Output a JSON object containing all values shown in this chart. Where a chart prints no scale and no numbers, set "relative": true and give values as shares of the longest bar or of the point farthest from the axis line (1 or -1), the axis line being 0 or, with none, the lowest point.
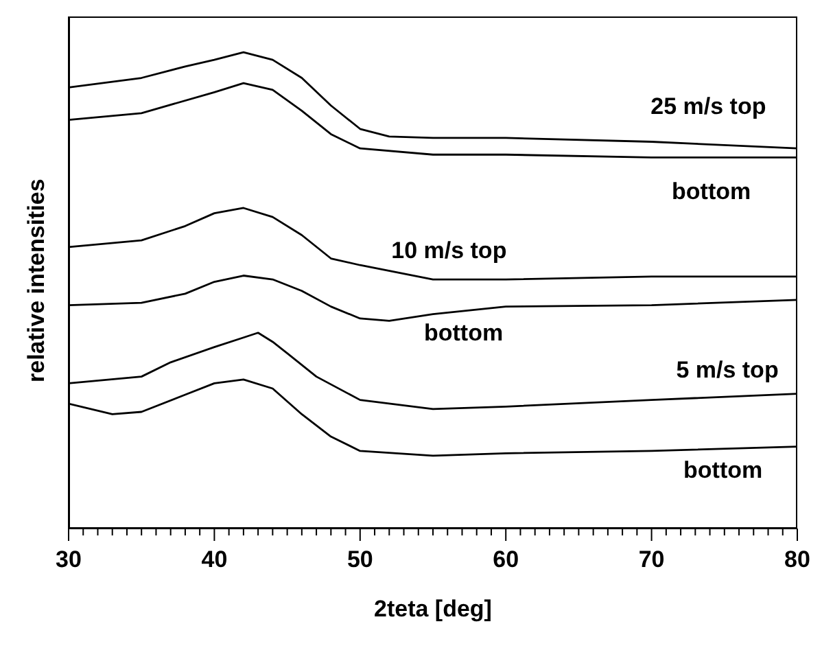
{
  "chart_data": {
    "type": "line",
    "relative": true,
    "xlabel": "2teta [deg]",
    "ylabel": "relative intensities",
    "xlim": [
      30,
      80
    ],
    "xticks": [
      30,
      {
        "value": 31,
        "label": null
      },
      {
        "value": 32,
        "label": null
      },
      {
        "value": 33,
        "label": null
      },
      {
        "value": 34,
        "label": null
      },
      {
        "value": 35,
        "label": null
      },
      {
        "value": 36,
        "label": null
      },
      {
        "value": 37,
        "label": null
      },
      {
        "value": 38,
        "label": null
      },
      {
        "value": 39,
        "label": null
      },
      40,
      {
        "value": 41,
        "label": null
      },
      {
        "value": 42,
        "label": null
      },
      {
        "value": 43,
        "label": null
      },
      {
        "value": 44,
        "label": null
      },
      {
        "value": 45,
        "label": null
      },
      {
        "value": 46,
        "label": null
      },
      {
        "value": 47,
        "label": null
      },
      {
        "value": 48,
        "label": null
      },
      {
        "value": 49,
        "label": null
      },
      50,
      {
        "value": 51,
        "label": null
      },
      {
        "value": 52,
        "label": null
      },
      {
        "value": 53,
        "label": null
      },
      {
        "value": 54,
        "label": null
      },
      {
        "value": 55,
        "label": null
      },
      {
        "value": 56,
        "label": null
      },
      {
        "value": 57,
        "label": null
      },
      {
        "value": 58,
        "label": null
      },
      {
        "value": 59,
        "label": null
      },
      60,
      {
        "value": 61,
        "label": null
      },
      {
        "value": 62,
        "label": null
      },
      {
        "value": 63,
        "label": null
      },
      {
        "value": 64,
        "label": null
      },
      {
        "value": 65,
        "label": null
      },
      {
        "value": 66,
        "label": null
      },
      {
        "value": 67,
        "label": null
      },
      {
        "value": 68,
        "label": null
      },
      {
        "value": 69,
        "label": null
      },
      70,
      {
        "value": 71,
        "label": null
      },
      {
        "value": 72,
        "label": null
      },
      {
        "value": 73,
        "label": null
      },
      {
        "value": 74,
        "label": null
      },
      {
        "value": 75,
        "label": null
      },
      {
        "value": 76,
        "label": null
      },
      {
        "value": 77,
        "label": null
      },
      {
        "value": 78,
        "label": null
      },
      {
        "value": 79,
        "label": null
      },
      80
    ],
    "grid": false,
    "legend": false,
    "marker": "none",
    "line_style": "solid",
    "series": [
      {
        "name": "25 m/s top",
        "color": "#000000",
        "x": [
          30,
          35,
          38,
          40,
          42,
          44,
          46,
          48,
          50,
          52,
          55,
          60,
          70,
          80
        ],
        "values": [
          0.926,
          0.946,
          0.97,
          0.984,
          1,
          0.984,
          0.946,
          0.888,
          0.839,
          0.823,
          0.82,
          0.82,
          0.812,
          0.798
        ]
      },
      {
        "name": "bottom",
        "color": "#000000",
        "x": [
          30,
          35,
          40,
          42,
          44,
          46,
          48,
          50,
          55,
          60,
          70,
          80
        ],
        "values": [
          0.858,
          0.872,
          0.916,
          0.935,
          0.921,
          0.877,
          0.828,
          0.798,
          0.785,
          0.785,
          0.779,
          0.779
        ]
      },
      {
        "name": "10 m/s top",
        "color": "#000000",
        "x": [
          30,
          35,
          38,
          40,
          42,
          44,
          46,
          48,
          50,
          55,
          60,
          70,
          80
        ],
        "values": [
          0.591,
          0.605,
          0.635,
          0.662,
          0.673,
          0.654,
          0.616,
          0.567,
          0.553,
          0.523,
          0.523,
          0.529,
          0.529
        ]
      },
      {
        "name": "bottom",
        "color": "#000000",
        "x": [
          30,
          35,
          38,
          40,
          42,
          44,
          46,
          48,
          50,
          52,
          55,
          60,
          70,
          80
        ],
        "values": [
          0.469,
          0.474,
          0.493,
          0.518,
          0.531,
          0.523,
          0.499,
          0.466,
          0.441,
          0.436,
          0.45,
          0.466,
          0.469,
          0.48
        ]
      },
      {
        "name": "5 m/s top",
        "color": "#000000",
        "x": [
          30,
          35,
          37,
          40,
          42,
          43,
          44,
          45,
          47,
          50,
          55,
          60,
          70,
          80
        ],
        "values": [
          0.305,
          0.319,
          0.349,
          0.381,
          0.401,
          0.411,
          0.392,
          0.368,
          0.319,
          0.27,
          0.251,
          0.256,
          0.27,
          0.283
        ]
      },
      {
        "name": "bottom",
        "color": "#000000",
        "x": [
          30,
          33,
          35,
          38,
          40,
          42,
          44,
          46,
          48,
          50,
          55,
          60,
          70,
          80
        ],
        "values": [
          0.262,
          0.24,
          0.245,
          0.281,
          0.305,
          0.313,
          0.294,
          0.24,
          0.193,
          0.163,
          0.153,
          0.158,
          0.163,
          0.172
        ]
      }
    ]
  }
}
